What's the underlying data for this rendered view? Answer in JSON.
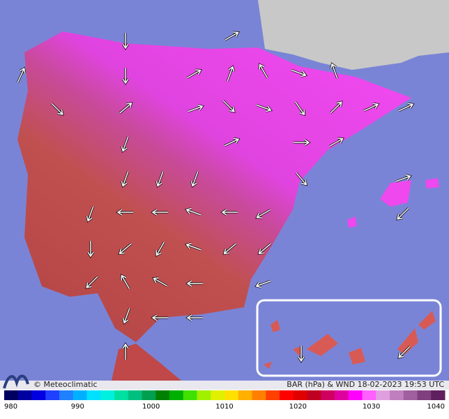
{
  "caption": {
    "logo": "© Meteoclimatic",
    "title": "BAR (hPa) & WND 18-02-2023 19:53 UTC"
  },
  "scale": {
    "ticks": [
      980,
      990,
      1000,
      1010,
      1020,
      1030,
      1040
    ],
    "lim": [
      980,
      1040
    ]
  }
}
